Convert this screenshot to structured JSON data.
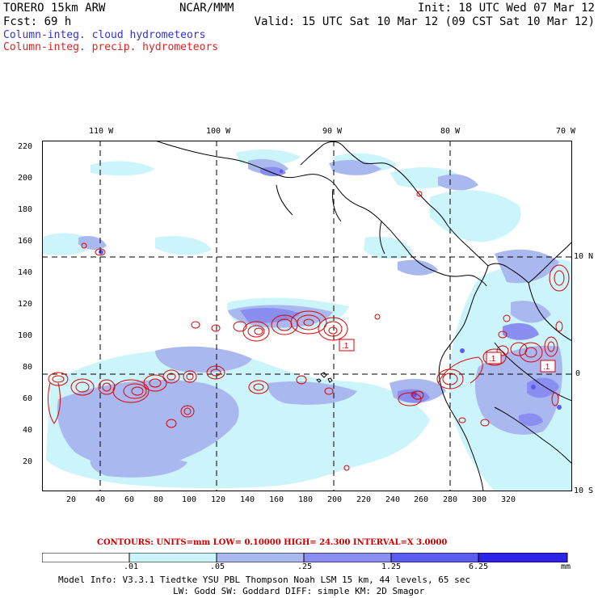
{
  "header": {
    "model": "TORERO  15km ARW",
    "org": "NCAR/MMM",
    "init": "Init: 18 UTC Wed 07 Mar 12",
    "fcst": "Fcst:   69 h",
    "valid": "Valid: 15 UTC Sat 10 Mar 12 (09 CST Sat 10 Mar 12)",
    "field_cloud": "Column-integ. cloud hydrometeors",
    "field_precip": "Column-integ. precip. hydrometeors"
  },
  "axes": {
    "top_lon": [
      "110 W",
      "100 W",
      "90 W",
      "80 W",
      "70 W"
    ],
    "right_lat": [
      "10 N",
      "0",
      "10 S"
    ],
    "left_y": [
      "20",
      "40",
      "60",
      "80",
      "100",
      "120",
      "140",
      "160",
      "180",
      "200",
      "220"
    ],
    "bottom_x": [
      "20",
      "40",
      "60",
      "80",
      "100",
      "120",
      "140",
      "160",
      "180",
      "200",
      "220",
      "240",
      "260",
      "280",
      "300",
      "320"
    ]
  },
  "map_labels": {
    "box1": ".1",
    "box2": ".1",
    "box3": ".1"
  },
  "contours_line": {
    "label": "CONTOURS:  UNITS=mm  LOW= 0.10000      HIGH=  24.300      INTERVAL=X  3.0000"
  },
  "legend": {
    "ticks": [
      ".01",
      ".05",
      ".25",
      "1.25",
      "6.25"
    ],
    "unit": "mm",
    "colors": [
      "#ffffff",
      "#ccf5fb",
      "#aab8f0",
      "#8a8ef0",
      "#5d5cf0",
      "#2f22e8"
    ]
  },
  "footer": {
    "line1": "Model Info: V3.3.1   Tiedtke YSU PBL  Thompson    Noah LSM  15 km,   44 levels,   65 sec",
    "line2": "LW: Godd SW: Goddard DIFF: simple KM: 2D Smagor"
  },
  "colors": {
    "cloud_light": "#ccf5fb",
    "cloud_mid": "#aab8f0",
    "cloud_dark": "#8a8ef0",
    "cloud_darker": "#5d5cf0",
    "precip": "#e00000"
  }
}
